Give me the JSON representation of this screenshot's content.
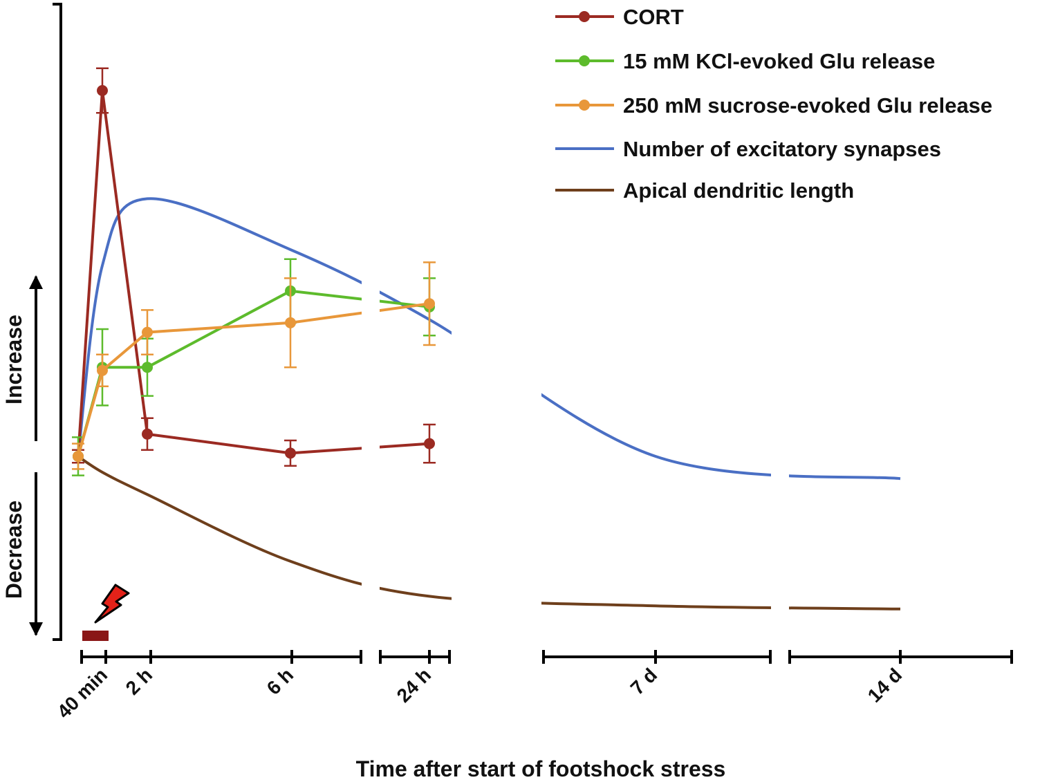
{
  "chart_data": {
    "type": "line",
    "title": "",
    "xlabel": "Time after start of footshock stress",
    "ylabel_up": "Increase",
    "ylabel_down": "Decrease",
    "x_ticks": [
      "40 min",
      "2 h",
      "6 h",
      "24 h",
      "7 d",
      "14 d"
    ],
    "y_range": [
      -1,
      1
    ],
    "baseline": 0,
    "stimulus_icon": "lightning-bolt-icon",
    "series": [
      {
        "name": "CORT",
        "color": "#9b2a22",
        "style": "markers",
        "x": [
          "0 min",
          "40 min",
          "2 h",
          "6 h",
          "24 h"
        ],
        "values": [
          0.0,
          1.15,
          0.07,
          0.01,
          0.04
        ],
        "errors": [
          0.02,
          0.07,
          0.05,
          0.04,
          0.06
        ]
      },
      {
        "name": "15 mM KCl-evoked Glu release",
        "color": "#5dbb2c",
        "style": "markers",
        "x": [
          "0 min",
          "40 min",
          "2 h",
          "6 h",
          "24 h"
        ],
        "values": [
          0.0,
          0.28,
          0.28,
          0.52,
          0.47
        ],
        "errors": [
          0.06,
          0.12,
          0.09,
          0.1,
          0.09
        ]
      },
      {
        "name": "250 mM sucrose-evoked Glu release",
        "color": "#e8973a",
        "style": "markers",
        "x": [
          "0 min",
          "40 min",
          "2 h",
          "6 h",
          "24 h"
        ],
        "values": [
          0.0,
          0.27,
          0.39,
          0.42,
          0.48
        ],
        "errors": [
          0.04,
          0.05,
          0.07,
          0.14,
          0.13
        ]
      },
      {
        "name": "Number of excitatory synapses",
        "color": "#4a6fc4",
        "style": "smooth",
        "x": [
          "0 min",
          "40 min",
          "2 h",
          "6 h",
          "24 h",
          "7 d",
          "14 d"
        ],
        "values": [
          0.0,
          0.6,
          0.81,
          0.65,
          0.43,
          0.0,
          -0.07
        ]
      },
      {
        "name": "Apical dendritic length",
        "color": "#6e3f1c",
        "style": "smooth",
        "x": [
          "0 min",
          "40 min",
          "2 h",
          "6 h",
          "24 h",
          "7 d",
          "14 d"
        ],
        "values": [
          0.0,
          -0.05,
          -0.12,
          -0.33,
          -0.44,
          -0.47,
          -0.48
        ]
      }
    ]
  }
}
